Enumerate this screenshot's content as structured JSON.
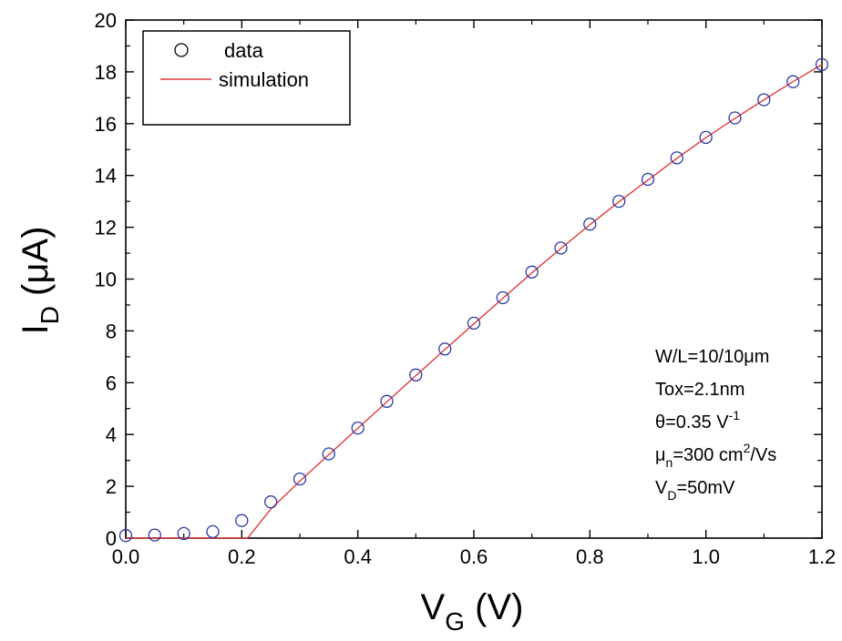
{
  "chart_data": {
    "type": "scatter",
    "xlim": [
      0.0,
      1.2
    ],
    "ylim": [
      0,
      20
    ],
    "x_ticks": [
      "0.0",
      "0.2",
      "0.4",
      "0.6",
      "0.8",
      "1.0",
      "1.2"
    ],
    "y_ticks": [
      "0",
      "2",
      "4",
      "6",
      "8",
      "10",
      "12",
      "14",
      "16",
      "18",
      "20"
    ],
    "xlabel": {
      "main": "V",
      "sub": "G",
      "unit": " (V)"
    },
    "ylabel": {
      "main": "I",
      "sub": "D",
      "unit": " (μA)"
    },
    "grid": false,
    "legend": {
      "position": "top-left",
      "entries": [
        "data",
        "simulation"
      ]
    },
    "series": [
      {
        "name": "data",
        "kind": "scatter",
        "marker": "open-circle",
        "color": "#2b3aa8",
        "x": [
          0.0,
          0.05,
          0.1,
          0.15,
          0.2,
          0.25,
          0.3,
          0.35,
          0.4,
          0.45,
          0.5,
          0.55,
          0.6,
          0.65,
          0.7,
          0.75,
          0.8,
          0.85,
          0.9,
          0.95,
          1.0,
          1.05,
          1.1,
          1.15,
          1.2
        ],
        "y": [
          0.1,
          0.12,
          0.18,
          0.25,
          0.68,
          1.4,
          2.28,
          3.25,
          4.25,
          5.28,
          6.3,
          7.3,
          8.3,
          9.28,
          10.27,
          11.2,
          12.12,
          13.0,
          13.85,
          14.68,
          15.47,
          16.22,
          16.92,
          17.62,
          18.28
        ]
      },
      {
        "name": "simulation",
        "kind": "line",
        "color": "#e03a3a",
        "x": [
          0.0,
          0.21,
          0.25,
          0.3,
          0.35,
          0.4,
          0.45,
          0.5,
          0.55,
          0.6,
          0.65,
          0.7,
          0.75,
          0.8,
          0.85,
          0.9,
          0.95,
          1.0,
          1.05,
          1.1,
          1.15,
          1.2
        ],
        "y": [
          0.0,
          0.0,
          1.12,
          2.2,
          3.22,
          4.24,
          5.26,
          6.27,
          7.28,
          8.27,
          9.26,
          10.24,
          11.18,
          12.1,
          12.98,
          13.82,
          14.66,
          15.46,
          16.2,
          16.92,
          17.62,
          18.28
        ]
      }
    ],
    "annotations": [
      {
        "parts": [
          {
            "t": "W/L=10/10μm"
          }
        ]
      },
      {
        "parts": [
          {
            "t": "Tox=2.1nm"
          }
        ]
      },
      {
        "parts": [
          {
            "t": "θ=0.35 V"
          },
          {
            "t": "-1",
            "s": "sup"
          }
        ]
      },
      {
        "parts": [
          {
            "t": "μ"
          },
          {
            "t": "n",
            "s": "sub"
          },
          {
            "t": "=300 cm"
          },
          {
            "t": "2",
            "s": "sup"
          },
          {
            "t": "/Vs"
          }
        ]
      },
      {
        "parts": [
          {
            "t": "V"
          },
          {
            "t": "D",
            "s": "sub"
          },
          {
            "t": "=50mV"
          }
        ]
      }
    ]
  }
}
